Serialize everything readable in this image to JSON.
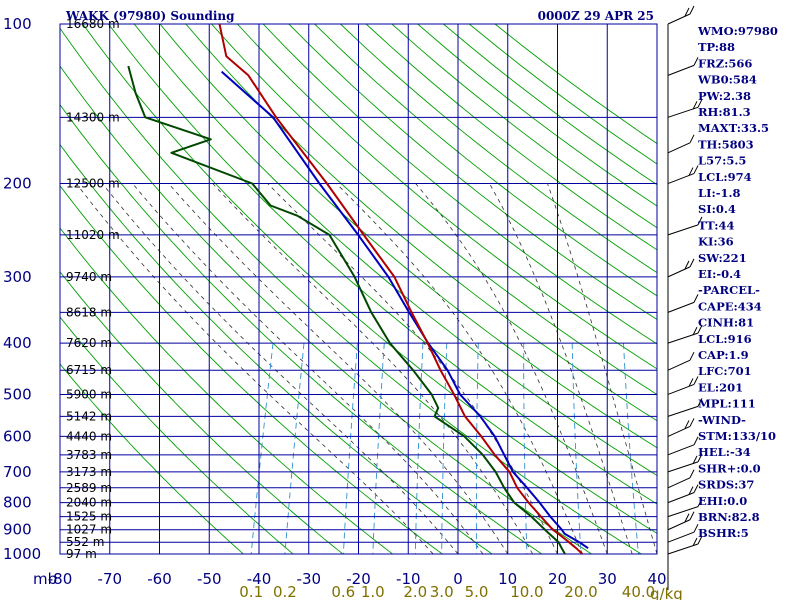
{
  "header": {
    "station": "WAKK (97980) Sounding",
    "time": "0000Z 29 APR 25"
  },
  "axis": {
    "pressure_unit_label": "mb",
    "mixing_ratio_unit_label": "g/kg"
  },
  "indices": [
    "WMO:97980",
    "TP:88",
    "FRZ:566",
    "WB0:584",
    "PW:2.38",
    "RH:81.3",
    "MAXT:33.5",
    "TH:5803",
    "L57:5.5",
    "LCL:974",
    "LI:-1.8",
    "SI:0.4",
    "TT:44",
    "KI:36",
    "SW:221",
    "EI:-0.4",
    "-PARCEL-",
    "CAPE:434",
    "CINH:81",
    "LCL:916",
    "CAP:1.9",
    "LFC:701",
    "EL:201",
    "MPL:111",
    "-WIND-",
    "STM:133/10",
    "HEL:-34",
    "SHR+:0.0",
    "SRDS:37",
    "EHI:0.0",
    "BRN:82.8",
    "BSHR:5"
  ],
  "colors": {
    "grid": "#0000a0",
    "dry_adiabats": "#00a000",
    "moist_adiabats": "#303030",
    "mixing_ratio": "#3090d0",
    "temperature": "#b00000",
    "dewpoint": "#004800",
    "parcel": "#0000c0",
    "labels": "#000080",
    "mixing_ratio_labels": "#807000"
  },
  "chart_data": {
    "type": "line",
    "title": "WAKK (97980) Sounding",
    "subtitle": "0000Z 29 APR 25",
    "x_axis": "temperature",
    "y_axis": "pressure",
    "y_scale": "log",
    "y_reversed": true,
    "xlim": [
      -80,
      40
    ],
    "ylim": [
      1000,
      100
    ],
    "x_ticks": [
      -80,
      -70,
      -60,
      -50,
      -40,
      -30,
      -20,
      -10,
      0,
      10,
      20,
      30,
      40
    ],
    "pressure_levels": [
      {
        "p": 100,
        "label": "100",
        "height": "16680 m"
      },
      {
        "p": 150,
        "label": "",
        "height": "14300 m"
      },
      {
        "p": 200,
        "label": "200",
        "height": "12500 m"
      },
      {
        "p": 250,
        "label": "",
        "height": "11020 m"
      },
      {
        "p": 300,
        "label": "300",
        "height": "9740 m"
      },
      {
        "p": 350,
        "label": "",
        "height": "8618 m"
      },
      {
        "p": 400,
        "label": "400",
        "height": "7620 m"
      },
      {
        "p": 450,
        "label": "",
        "height": "6715 m"
      },
      {
        "p": 500,
        "label": "500",
        "height": "5900 m"
      },
      {
        "p": 550,
        "label": "",
        "height": "5142 m"
      },
      {
        "p": 600,
        "label": "600",
        "height": "4440 m"
      },
      {
        "p": 650,
        "label": "",
        "height": "3783 m"
      },
      {
        "p": 700,
        "label": "700",
        "height": "3173 m"
      },
      {
        "p": 750,
        "label": "",
        "height": "2589 m"
      },
      {
        "p": 800,
        "label": "800",
        "height": "2040 m"
      },
      {
        "p": 850,
        "label": "",
        "height": "1525 m"
      },
      {
        "p": 900,
        "label": "900",
        "height": "1027 m"
      },
      {
        "p": 950,
        "label": "",
        "height": "552 m"
      },
      {
        "p": 1000,
        "label": "1000",
        "height": "97 m"
      }
    ],
    "mixing_ratio_labels": [
      "0.1",
      "0.2",
      "0.6",
      "1.0",
      "2.0",
      "3.0",
      "5.0",
      "10.0",
      "20.0",
      "40.0"
    ],
    "mixing_ratio_values": [
      0.1,
      0.2,
      0.6,
      1.0,
      2.0,
      3.0,
      5.0,
      10.0,
      20.0,
      40.0
    ],
    "series": [
      {
        "key": "temperature",
        "points": [
          [
            1000,
            25.0
          ],
          [
            975,
            23.4
          ],
          [
            950,
            21.6
          ],
          [
            925,
            19.7
          ],
          [
            900,
            17.6
          ],
          [
            850,
            14.4
          ],
          [
            800,
            11.1
          ],
          [
            750,
            7.9
          ],
          [
            700,
            5.4
          ],
          [
            650,
            1.4
          ],
          [
            600,
            -2.4
          ],
          [
            550,
            -6.9
          ],
          [
            500,
            -10.4
          ],
          [
            450,
            -14.6
          ],
          [
            400,
            -18.8
          ],
          [
            350,
            -23.9
          ],
          [
            300,
            -29.5
          ],
          [
            250,
            -38.2
          ],
          [
            200,
            -48.7
          ],
          [
            150,
            -62.9
          ],
          [
            125,
            -71.0
          ],
          [
            115,
            -76.6
          ],
          [
            100,
            -79.9
          ]
        ]
      },
      {
        "key": "dewpoint",
        "points": [
          [
            1000,
            21.5
          ],
          [
            975,
            20.5
          ],
          [
            950,
            19.5
          ],
          [
            900,
            16.0
          ],
          [
            850,
            12.5
          ],
          [
            800,
            8.2
          ],
          [
            750,
            5.3
          ],
          [
            700,
            2.6
          ],
          [
            650,
            -1.0
          ],
          [
            600,
            -5.8
          ],
          [
            550,
            -13.0
          ],
          [
            530,
            -12.8
          ],
          [
            500,
            -14.9
          ],
          [
            450,
            -20.1
          ],
          [
            400,
            -26.4
          ],
          [
            350,
            -32.0
          ],
          [
            300,
            -37.5
          ],
          [
            250,
            -45.1
          ],
          [
            230,
            -52.7
          ],
          [
            220,
            -58.7
          ],
          [
            200,
            -63.7
          ],
          [
            175,
            -81.8
          ],
          [
            165,
            -74.7
          ],
          [
            150,
            -89.2
          ],
          [
            135,
            -92.6
          ],
          [
            120,
            -95.7
          ]
        ]
      },
      {
        "key": "parcel",
        "points": [
          [
            975,
            25.8
          ],
          [
            950,
            23.7
          ],
          [
            916,
            20.2
          ],
          [
            900,
            19.4
          ],
          [
            850,
            16.3
          ],
          [
            800,
            13.3
          ],
          [
            750,
            9.9
          ],
          [
            700,
            6.1
          ],
          [
            650,
            3.3
          ],
          [
            600,
            0.3
          ],
          [
            550,
            -3.8
          ],
          [
            500,
            -9.2
          ],
          [
            450,
            -13.2
          ],
          [
            400,
            -18.7
          ],
          [
            350,
            -24.4
          ],
          [
            300,
            -30.7
          ],
          [
            250,
            -39.3
          ],
          [
            200,
            -50.2
          ],
          [
            150,
            -63.5
          ],
          [
            123,
            -76.6
          ]
        ]
      }
    ],
    "wind_barbs_present": true
  }
}
